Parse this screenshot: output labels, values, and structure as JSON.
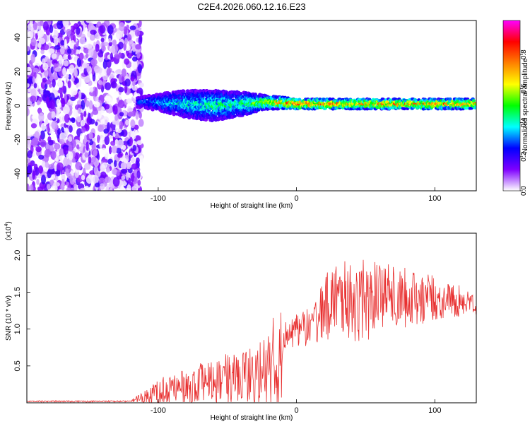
{
  "title": "C2E4.2026.060.12.16.E23",
  "chart_data": [
    {
      "type": "heatmap",
      "xlabel": "Height of straight line (km)",
      "ylabel": "Frequency (Hz)",
      "xlim": [
        -195,
        130
      ],
      "ylim": [
        -50,
        50
      ],
      "x_ticks": [
        {
          "v": -100,
          "label": "-100"
        },
        {
          "v": 0,
          "label": "0"
        },
        {
          "v": 100,
          "label": "100"
        }
      ],
      "y_ticks": [
        {
          "v": -40,
          "label": "-40"
        },
        {
          "v": -20,
          "label": "-20"
        },
        {
          "v": 0,
          "label": "0"
        },
        {
          "v": 20,
          "label": "20"
        },
        {
          "v": 40,
          "label": "40"
        }
      ],
      "noise_region_x": [
        -195,
        -112
      ],
      "signal_band": [
        {
          "x": -115,
          "y": 2,
          "w": 3,
          "amp": 0.3
        },
        {
          "x": -100,
          "y": 2,
          "w": 5,
          "amp": 0.35
        },
        {
          "x": -80,
          "y": 1,
          "w": 8,
          "amp": 0.4
        },
        {
          "x": -60,
          "y": 0,
          "w": 9,
          "amp": 0.45
        },
        {
          "x": -40,
          "y": 1,
          "w": 7,
          "amp": 0.45
        },
        {
          "x": -20,
          "y": 2,
          "w": 4,
          "amp": 0.6
        },
        {
          "x": 0,
          "y": 1,
          "w": 3,
          "amp": 0.8
        },
        {
          "x": 20,
          "y": 1,
          "w": 3,
          "amp": 0.75
        },
        {
          "x": 40,
          "y": 1,
          "w": 3,
          "amp": 0.7
        },
        {
          "x": 60,
          "y": 1,
          "w": 3,
          "amp": 0.75
        },
        {
          "x": 80,
          "y": 1,
          "w": 3,
          "amp": 0.7
        },
        {
          "x": 100,
          "y": 1,
          "w": 3,
          "amp": 0.75
        },
        {
          "x": 130,
          "y": 1,
          "w": 3,
          "amp": 0.7
        }
      ],
      "colorbar": {
        "label": "Normalized spectral amplitude",
        "range": [
          0,
          1
        ],
        "ticks": [
          {
            "v": 0,
            "label": "0.0"
          },
          {
            "v": 0.2,
            "label": "0.2"
          },
          {
            "v": 0.4,
            "label": "0.4"
          },
          {
            "v": 0.6,
            "label": "0.6"
          },
          {
            "v": 0.8,
            "label": "0.8"
          }
        ],
        "stops": [
          "#ffffff",
          "#7f00ff",
          "#0000ff",
          "#00ffff",
          "#00ff00",
          "#ffff00",
          "#ff8000",
          "#ff0000",
          "#ff00ff"
        ]
      }
    },
    {
      "type": "line",
      "xlabel": "Height of straight line (km)",
      "ylabel": "SNR (10 * v/v)",
      "multiplier": "(x10",
      "multiplier_exp": "4",
      "multiplier_close": ")",
      "xlim": [
        -195,
        130
      ],
      "ylim": [
        0,
        2.3
      ],
      "x_ticks": [
        {
          "v": -100,
          "label": "-100"
        },
        {
          "v": 0,
          "label": "0"
        },
        {
          "v": 100,
          "label": "100"
        }
      ],
      "y_ticks": [
        {
          "v": 0.5,
          "label": "0.5"
        },
        {
          "v": 1.0,
          "label": "1.0"
        },
        {
          "v": 1.5,
          "label": "1.5"
        },
        {
          "v": 2.0,
          "label": "2.0"
        }
      ],
      "color": "#e83030",
      "envelope": [
        {
          "x": -195,
          "base": 0.02,
          "amp": 0.01
        },
        {
          "x": -120,
          "base": 0.02,
          "amp": 0.01
        },
        {
          "x": -100,
          "base": 0.15,
          "amp": 0.2
        },
        {
          "x": -60,
          "base": 0.3,
          "amp": 0.3
        },
        {
          "x": -30,
          "base": 0.4,
          "amp": 0.4
        },
        {
          "x": -11,
          "base": 0.55,
          "amp": 0.8
        },
        {
          "x": -10,
          "base": 0.9,
          "amp": 0.2
        },
        {
          "x": 10,
          "base": 1.05,
          "amp": 0.25
        },
        {
          "x": 25,
          "base": 1.4,
          "amp": 0.5
        },
        {
          "x": 45,
          "base": 1.4,
          "amp": 0.55
        },
        {
          "x": 80,
          "base": 1.45,
          "amp": 0.4
        },
        {
          "x": 110,
          "base": 1.4,
          "amp": 0.25
        },
        {
          "x": 130,
          "base": 1.35,
          "amp": 0.15
        }
      ]
    }
  ]
}
